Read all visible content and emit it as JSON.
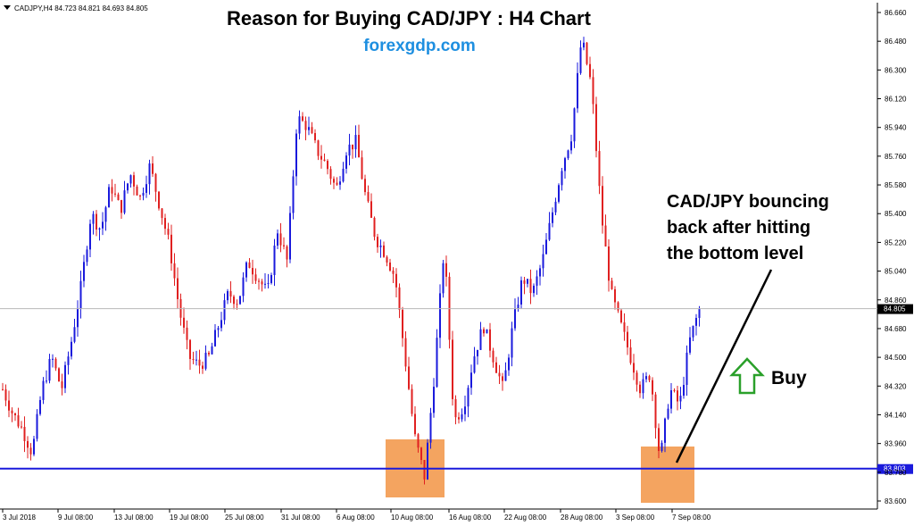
{
  "header": {
    "ohlc_label": "CADJPY,H4  84.723 84.821 84.693 84.805",
    "title": "Reason for Buying CAD/JPY : H4 Chart",
    "site": "forexgdp.com"
  },
  "annotation": {
    "lines": [
      "CAD/JPY bouncing",
      "back after hitting",
      "the bottom level"
    ],
    "buy_label": "Buy"
  },
  "colors": {
    "bull": "#1a1adc",
    "bear": "#e02020",
    "support_line": "#1a1adc",
    "current_line": "#b8b8b8",
    "highlight_box": "#f4a460",
    "buy_arrow": "#2aa02a",
    "site": "#1e8fe0"
  },
  "chart_data": {
    "type": "candlestick",
    "symbol": "CADJPY",
    "timeframe": "H4",
    "title": "Reason for Buying CAD/JPY : H4 Chart",
    "ylim": [
      83.56,
      86.7
    ],
    "y_ticks": [
      "86.660",
      "86.480",
      "86.300",
      "86.120",
      "85.940",
      "85.760",
      "85.580",
      "85.400",
      "85.220",
      "85.040",
      "84.860",
      "84.680",
      "84.500",
      "84.320",
      "84.140",
      "83.960",
      "83.780",
      "83.600"
    ],
    "x_ticks": [
      "3 Jul 2018",
      "9 Jul 08:00",
      "13 Jul 08:00",
      "19 Jul 08:00",
      "25 Jul 08:00",
      "31 Jul 08:00",
      "6 Aug 08:00",
      "10 Aug 08:00",
      "16 Aug 08:00",
      "22 Aug 08:00",
      "28 Aug 08:00",
      "3 Sep 08:00",
      "7 Sep 08:00"
    ],
    "current_price": 84.805,
    "current_price_label": "84.805",
    "support_level": 83.803,
    "support_label": "83.803",
    "path": [
      84.3,
      84.15,
      84.05,
      83.9,
      84.3,
      84.5,
      84.3,
      84.6,
      84.95,
      85.4,
      85.3,
      85.58,
      85.42,
      85.65,
      85.5,
      85.7,
      85.45,
      85.2,
      84.8,
      84.5,
      84.45,
      84.5,
      84.7,
      84.9,
      84.85,
      85.1,
      85.0,
      84.9,
      85.3,
      85.1,
      86.0,
      85.95,
      85.8,
      85.7,
      85.55,
      85.8,
      85.85,
      85.5,
      85.25,
      85.15,
      85.0,
      84.5,
      84.0,
      83.75,
      84.4,
      85.2,
      84.1,
      84.2,
      84.5,
      84.7,
      84.5,
      84.3,
      84.7,
      85.0,
      84.9,
      85.1,
      85.4,
      85.7,
      85.9,
      86.5,
      86.2,
      85.4,
      84.9,
      84.7,
      84.5,
      84.3,
      84.4,
      83.85,
      84.3,
      84.2,
      84.6,
      84.805
    ]
  }
}
